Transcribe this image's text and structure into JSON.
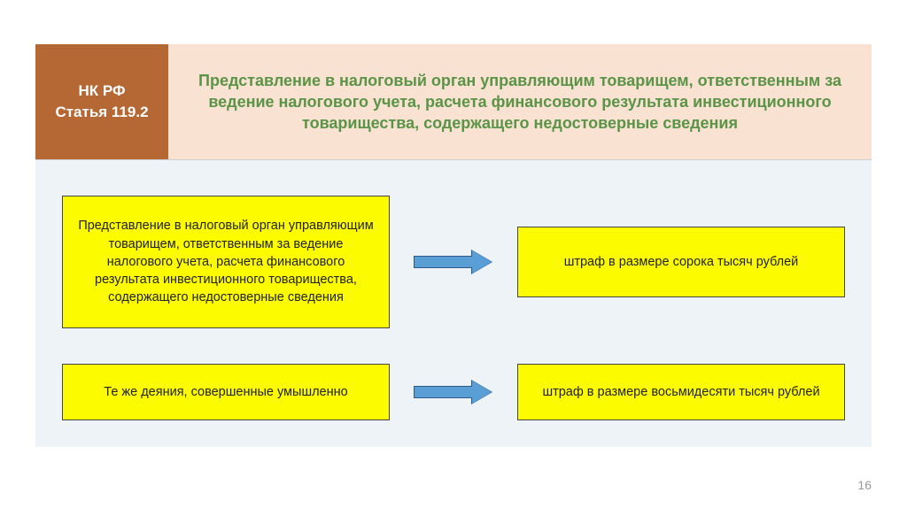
{
  "badge": {
    "line1": "НК РФ",
    "line2": "Статья 119.2",
    "bg_color": "#b66834",
    "text_color": "#ffffff"
  },
  "header": {
    "title": "Представление в налоговый орган управляющим товарищем, ответственным за ведение налогового учета, расчета финансового результата инвестиционного товарищества, содержащего недостоверные сведения",
    "bg_color": "#f9e2d2",
    "text_color": "#5a9447"
  },
  "panel": {
    "bg_color": "#eef3f7"
  },
  "flows": [
    {
      "left": "Представление в налоговый орган управляющим товарищем, ответственным за ведение налогового учета, расчета финансового результата инвестиционного товарищества, содержащего недостоверные сведения",
      "right": "штраф в размере сорока тысяч рублей",
      "left_height": 150,
      "right_height": 80
    },
    {
      "left": "Те же деяния, совершенные умышленно",
      "right": "штраф в размере восьмидесяти тысяч рублей",
      "left_height": 64,
      "right_height": 64
    }
  ],
  "box_style": {
    "bg_color": "#fdfb00",
    "border_color": "#444444",
    "text_color": "#222222"
  },
  "arrow_style": {
    "fill_color": "#5a9ed6",
    "border_color": "#2b5a8c"
  },
  "page_number": "16"
}
